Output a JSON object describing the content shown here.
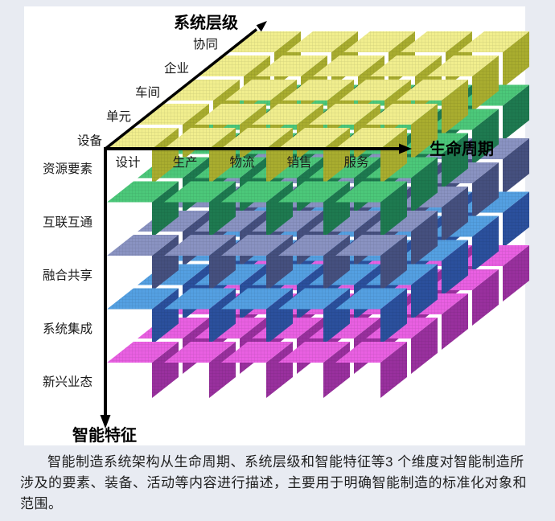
{
  "figure": {
    "name": "智能制造系统架构",
    "chart_data": {
      "type": "3d-grid-diagram",
      "grid_size": {
        "life_cycle": 5,
        "system_level": 5,
        "intelligent_features": 5
      },
      "axes": {
        "life_cycle": {
          "title": "生命周期",
          "items": [
            "设计",
            "生产",
            "物流",
            "销售",
            "服务"
          ]
        },
        "system_level": {
          "title": "系统层级",
          "items": [
            "设备",
            "单元",
            "车间",
            "企业",
            "协同"
          ]
        },
        "intelligent_features": {
          "title": "智能特征",
          "items": [
            "资源要素",
            "互联互通",
            "融合共享",
            "系统集成",
            "新兴业态"
          ]
        }
      },
      "layers": [
        {
          "feature": "资源要素",
          "sheet_color": "#f1ee8e",
          "wall_color": "#a9ad2f"
        },
        {
          "feature": "互联互通",
          "sheet_color": "#4cc87a",
          "wall_color": "#1e7a50"
        },
        {
          "feature": "融合共享",
          "sheet_color": "#8a93c2",
          "wall_color": "#45507f"
        },
        {
          "feature": "系统集成",
          "sheet_color": "#54a0e2",
          "wall_color": "#2b509d"
        },
        {
          "feature": "新兴业态",
          "sheet_color": "#e960e2",
          "wall_color": "#99309e"
        }
      ],
      "axis_color": "#000000"
    }
  },
  "caption": {
    "text": "智能制造系统架构从生命周期、系统层级和智能特征等3 个维度对智能制造所涉及的要素、装备、活动等内容进行描述，主要用于明确智能制造的标准化对象和范围。"
  },
  "colors": {
    "page_bg": "#e8ebf2",
    "panel_bg": "#ffffff"
  }
}
